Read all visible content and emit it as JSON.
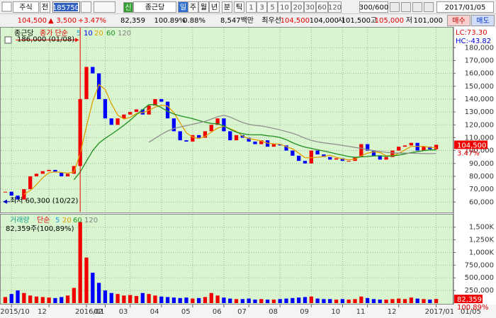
{
  "toolbar": {
    "market": "주식",
    "all": "전",
    "code": "185750",
    "new": "신",
    "name": "종근당",
    "periods": [
      "일",
      "주",
      "월",
      "년",
      "분",
      "틱"
    ],
    "intervals": [
      "1",
      "3",
      "5",
      "10",
      "20",
      "30",
      "60",
      "120"
    ],
    "count": "300/600",
    "date": "2017/01/05"
  },
  "quote": {
    "price": "104,500",
    "arrow": "▲",
    "change": "3,500",
    "change_rate": "+3.47%",
    "volume": "82,359",
    "volume_ratio": "100.89%",
    "turnover": "0.88%",
    "amount": "8,547백만",
    "best": "최우선",
    "ask": "104,500",
    "bid": "104,000",
    "open_label": "시",
    "open": "101,500",
    "high_label": "고",
    "high": "105,000",
    "low_label": "저",
    "low": "101,000",
    "buy": "매수",
    "sell": "매도"
  },
  "chart_data": [
    {
      "type": "candle",
      "title": "종근당",
      "legend_label": "종가 단순",
      "legend": [
        {
          "label": "5",
          "color": "#20a0e0"
        },
        {
          "label": "10",
          "color": "#0000ff"
        },
        {
          "label": "20",
          "color": "#e0a000"
        },
        {
          "label": "60",
          "color": "#209020"
        },
        {
          "label": "120",
          "color": "#808080"
        }
      ],
      "up_color": "#f00000",
      "down_color": "#0000ff",
      "series": [
        {
          "name": "종가",
          "values": [
            68000,
            65000,
            62000,
            70000,
            80000,
            82000,
            84000,
            85000,
            83000,
            80000,
            82000,
            88000,
            140000,
            165000,
            160000,
            140000,
            125000,
            120000,
            125000,
            128000,
            130000,
            132000,
            128000,
            135000,
            140000,
            138000,
            125000,
            115000,
            108000,
            107000,
            112000,
            110000,
            115000,
            120000,
            125000,
            115000,
            108000,
            112000,
            110000,
            107000,
            105000,
            108000,
            103000,
            105000,
            104000,
            100000,
            96000,
            92000,
            90000,
            100000,
            97000,
            95000,
            93000,
            94000,
            92000,
            92000,
            95000,
            105000,
            100000,
            96000,
            93000,
            95000,
            100000,
            103000,
            104000,
            106000,
            100000,
            103000,
            101000,
            104500
          ]
        },
        {
          "color": "#e0a000",
          "values": [
            null,
            null,
            null,
            66000,
            69000,
            73500,
            79000,
            82800,
            83500,
            83000,
            82500,
            83300,
            97500,
            118800,
            138300,
            151300,
            147500,
            136300,
            127500,
            124500,
            125800,
            128800,
            129500,
            131300,
            133800,
            135300,
            134500,
            129500,
            121500,
            113800,
            110500,
            109300,
            111000,
            114300,
            117500,
            118800,
            117000,
            115000,
            111300,
            109300,
            108500,
            107500,
            105800,
            105300,
            105000,
            103000,
            101300,
            98000,
            94500,
            94500,
            94800,
            95500,
            96300,
            94800,
            93500,
            92800,
            93300,
            96000,
            98000,
            99000,
            98500,
            96000,
            96000,
            97800,
            100500,
            103300,
            103300,
            103300,
            102500,
            102100
          ]
        },
        {
          "color": "#209020",
          "values": [
            null,
            null,
            null,
            null,
            null,
            null,
            null,
            null,
            null,
            null,
            null,
            77400,
            83400,
            91800,
            99900,
            105800,
            109500,
            112700,
            116100,
            119700,
            123600,
            127900,
            131800,
            135700,
            135700,
            133400,
            130500,
            128400,
            127000,
            125900,
            124800,
            123300,
            122100,
            121100,
            120800,
            119200,
            116500,
            114300,
            113100,
            112400,
            112200,
            112300,
            111500,
            111100,
            110200,
            108500,
            106100,
            104200,
            102700,
            101700,
            100600,
            99600,
            98600,
            97400,
            96500,
            95400,
            94700,
            95100,
            95400,
            95800,
            96000,
            95600,
            95800,
            96500,
            97400,
            98400,
            99100,
            100000,
            100500,
            100500
          ]
        },
        {
          "color": "#909090",
          "values": [
            null,
            null,
            null,
            null,
            null,
            null,
            null,
            null,
            null,
            null,
            null,
            null,
            null,
            null,
            null,
            null,
            null,
            null,
            null,
            null,
            null,
            null,
            null,
            106500,
            109500,
            112600,
            115200,
            117100,
            118300,
            119300,
            120500,
            121500,
            122800,
            124500,
            126300,
            127400,
            126100,
            123900,
            121800,
            120400,
            119600,
            119100,
            118200,
            117200,
            116100,
            114800,
            113500,
            111700,
            109600,
            108000,
            106800,
            106000,
            105400,
            104800,
            104000,
            103300,
            102400,
            101800,
            100800,
            100000,
            99300,
            98600,
            98200,
            98000,
            98000,
            97900,
            97800,
            97700,
            97600,
            97800
          ]
        }
      ],
      "ylim": [
        53000,
        195000
      ],
      "yticks": [
        {
          "value": 60000,
          "label": "60,000"
        },
        {
          "value": 70000,
          "label": "70,000"
        },
        {
          "value": 80000,
          "label": "80,000"
        },
        {
          "value": 90000,
          "label": "90,000"
        },
        {
          "value": 100000,
          "label": "100,000"
        },
        {
          "value": 110000,
          "label": "110,000"
        },
        {
          "value": 120000,
          "label": "120,000"
        },
        {
          "value": 130000,
          "label": "130,000"
        },
        {
          "value": 140000,
          "label": "140,000"
        },
        {
          "value": 150000,
          "label": "150,000"
        },
        {
          "value": 160000,
          "label": "160,000"
        },
        {
          "value": 170000,
          "label": "170,000"
        },
        {
          "value": 180000,
          "label": "180,000"
        }
      ],
      "grid": true,
      "annotations": [
        {
          "label": "186,000 (01/08)",
          "value": 186000
        },
        {
          "label": "최저 60,300 (10/22)",
          "value": 60300
        }
      ],
      "last_label": "104,500",
      "change_label": "3.47%",
      "lc": "LC:73.30",
      "hc": "HC:-43.82"
    },
    {
      "type": "bar",
      "title": "거래량",
      "legend_label": "단순",
      "legend": [
        {
          "label": "5",
          "color": "#20a0e0"
        },
        {
          "label": "20",
          "color": "#e0a000"
        },
        {
          "label": "60",
          "color": "#209020"
        },
        {
          "label": "120",
          "color": "#808080"
        }
      ],
      "subtitle": "82,359주(100,89%)",
      "categories": [
        null,
        "2015/10",
        null,
        null,
        null,
        null,
        null,
        "12",
        null,
        null,
        null,
        null,
        null,
        "2016/01",
        null,
        null,
        "02",
        null,
        null,
        null,
        "03",
        null,
        null,
        null,
        null,
        "04",
        null,
        null,
        null,
        null,
        "05",
        null,
        null,
        null,
        null,
        "06",
        null,
        null,
        null,
        "07",
        null,
        null,
        null,
        null,
        "08",
        null,
        null,
        null,
        null,
        "09",
        null,
        null,
        null,
        null,
        "10",
        null,
        null,
        null,
        "11",
        null,
        null,
        null,
        null,
        "12",
        null,
        null,
        null,
        null,
        null,
        "2017/01"
      ],
      "end_label": "01/05",
      "values": [
        120000,
        180000,
        250000,
        200000,
        150000,
        130000,
        120000,
        110000,
        100000,
        120000,
        150000,
        300000,
        1600000,
        900000,
        600000,
        400000,
        250000,
        200000,
        180000,
        150000,
        160000,
        140000,
        200000,
        180000,
        150000,
        130000,
        120000,
        110000,
        100000,
        110000,
        90000,
        100000,
        120000,
        200000,
        150000,
        110000,
        90000,
        80000,
        80000,
        90000,
        70000,
        80000,
        70000,
        70000,
        80000,
        90000,
        100000,
        110000,
        120000,
        130000,
        90000,
        80000,
        80000,
        70000,
        80000,
        70000,
        80000,
        130000,
        100000,
        80000,
        70000,
        70000,
        80000,
        90000,
        80000,
        110000,
        90000,
        80000,
        70000,
        82359
      ],
      "ylim": [
        0,
        1720000
      ],
      "yticks": [
        {
          "value": 250000,
          "label": "250,000"
        },
        {
          "value": 500000,
          "label": "500,000"
        },
        {
          "value": 750000,
          "label": "750,000"
        },
        {
          "value": 1000000,
          "label": "1,000K"
        },
        {
          "value": 1250000,
          "label": "1,250K"
        },
        {
          "value": 1500000,
          "label": "1,500K"
        }
      ],
      "grid": true,
      "last_label": "82,359",
      "ratio_label": "100.89%"
    }
  ]
}
